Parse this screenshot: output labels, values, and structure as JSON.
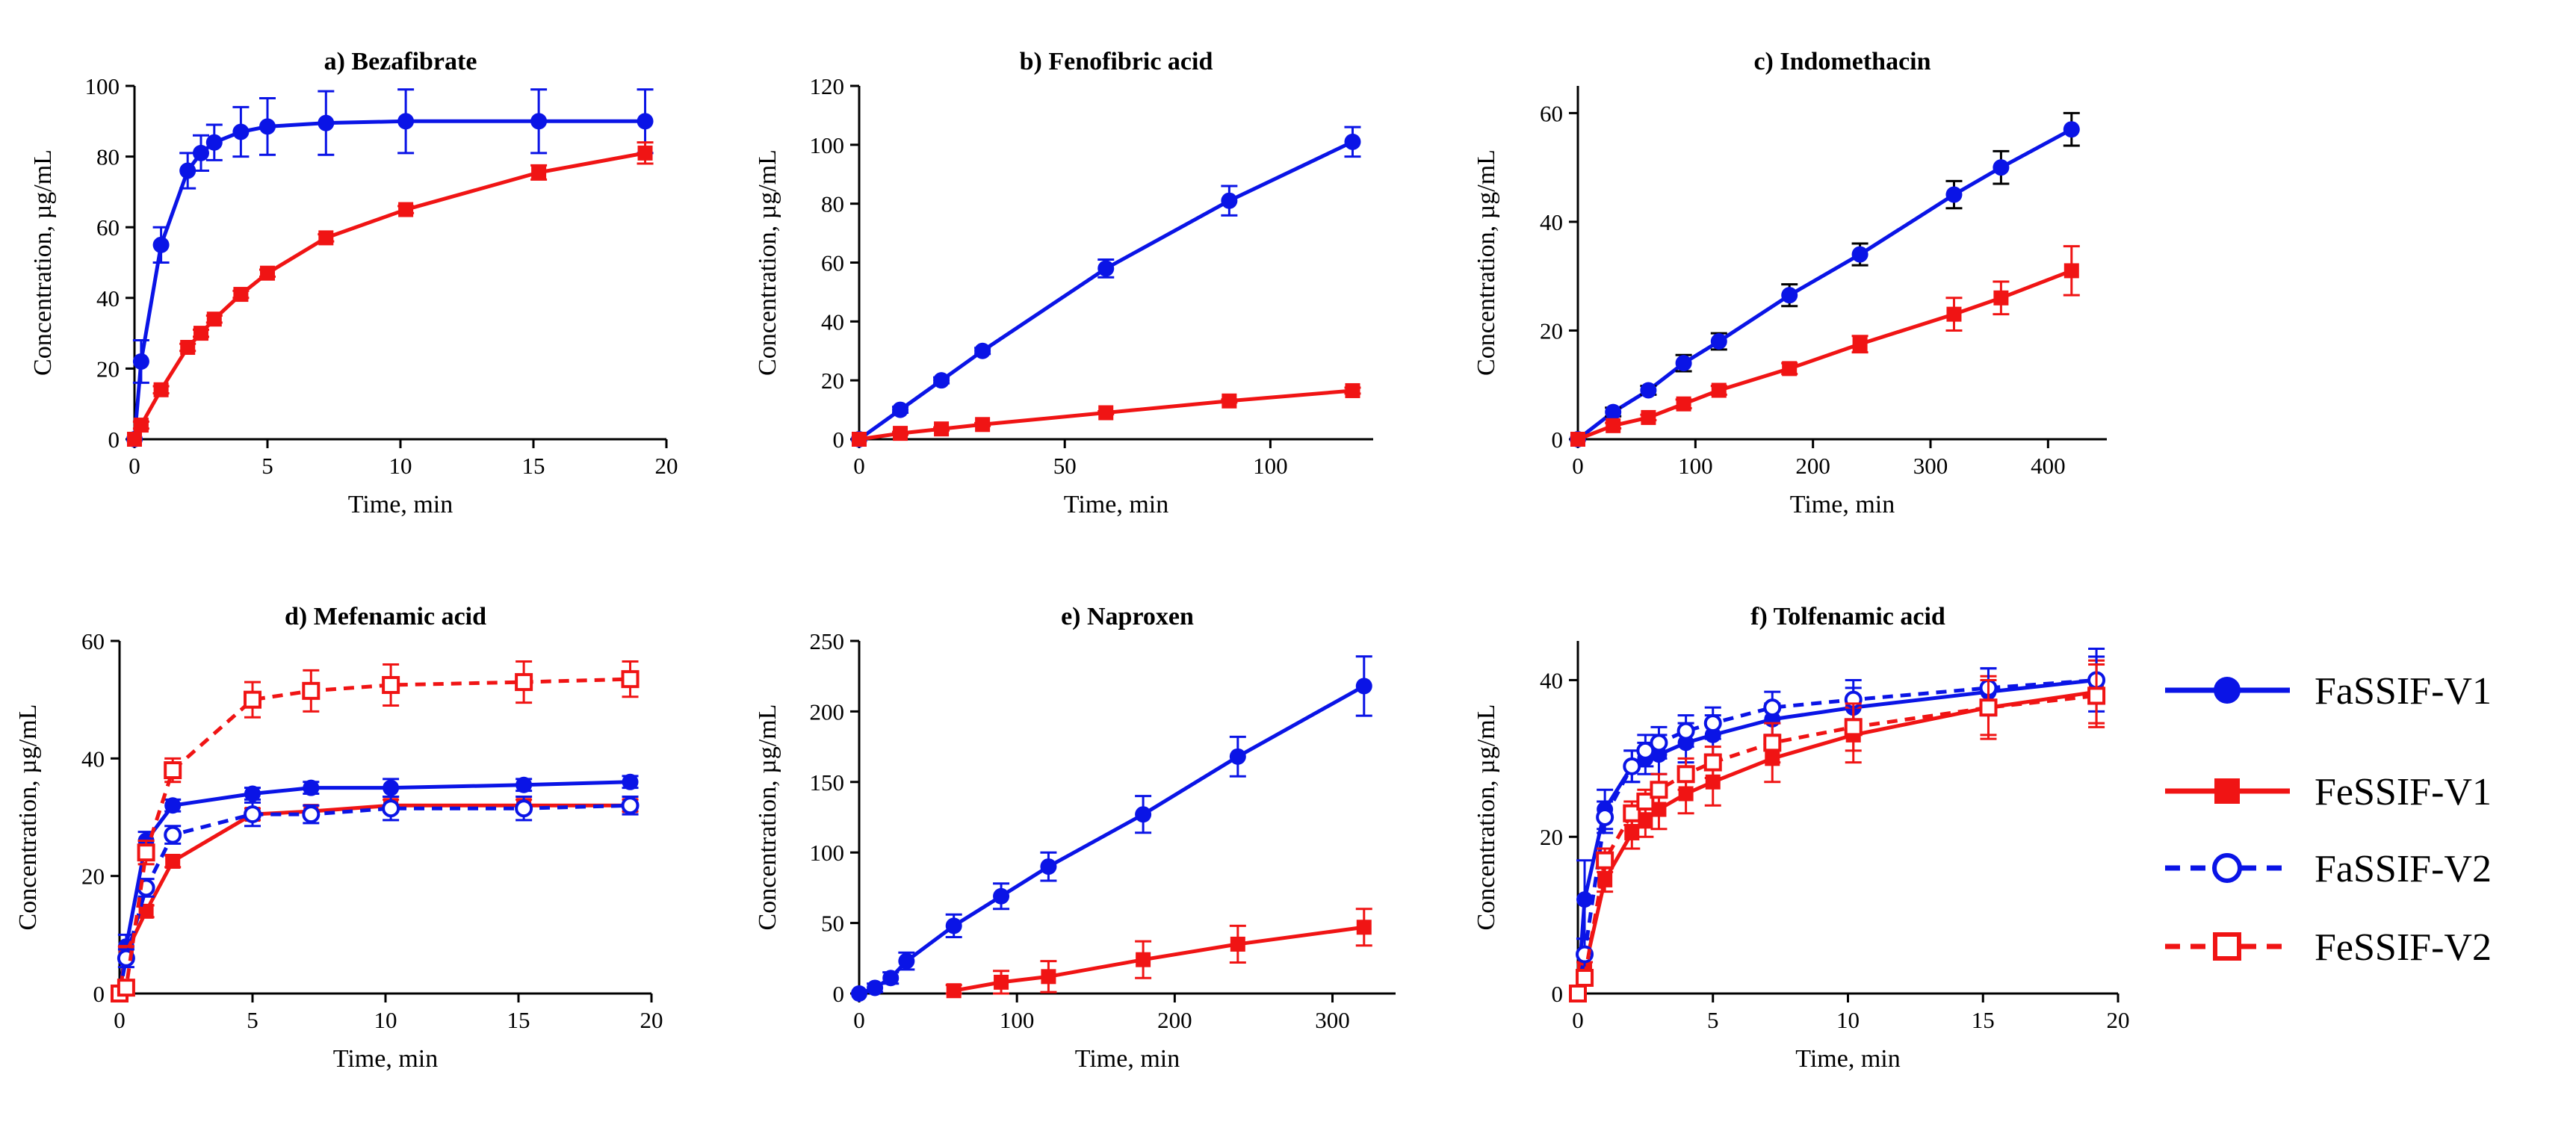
{
  "legend": {
    "items": [
      {
        "name": "FaSSIF-V1",
        "color": "#0A14E6",
        "marker": "circle-filled",
        "dashed": false
      },
      {
        "name": "FeSSIF-V1",
        "color": "#F01414",
        "marker": "square-filled",
        "dashed": false
      },
      {
        "name": "FaSSIF-V2",
        "color": "#0A14E6",
        "marker": "circle-open",
        "dashed": true
      },
      {
        "name": "FeSSIF-V2",
        "color": "#F01414",
        "marker": "square-open",
        "dashed": true
      }
    ]
  },
  "chart_data": [
    {
      "type": "line",
      "title": "a) Bezafibrate",
      "xlabel": "Time, min",
      "ylabel": "Concentration, µg/mL",
      "xlim": [
        0,
        20
      ],
      "ylim": [
        0,
        100
      ],
      "xticks": [
        0,
        5,
        10,
        15,
        20
      ],
      "yticks": [
        0,
        20,
        40,
        60,
        80,
        100
      ],
      "series": [
        {
          "name": "FaSSIF-V1",
          "x": [
            0,
            0.25,
            1,
            2,
            2.5,
            3,
            4,
            5,
            7.2,
            10.2,
            15.2,
            19.2
          ],
          "y": [
            0,
            22,
            55,
            76,
            81,
            84,
            87,
            88.5,
            89.5,
            90,
            90,
            90
          ],
          "err": [
            0,
            6,
            5,
            5,
            5,
            5,
            7,
            8,
            9,
            9,
            9,
            9
          ]
        },
        {
          "name": "FeSSIF-V1",
          "x": [
            0,
            0.25,
            1,
            2,
            2.5,
            3,
            4,
            5,
            7.2,
            10.2,
            15.2,
            19.2
          ],
          "y": [
            0,
            4,
            14,
            26,
            30,
            34,
            41,
            47,
            57,
            65,
            75.5,
            81
          ],
          "err": [
            0,
            1,
            1,
            1,
            1,
            1,
            1,
            1,
            1,
            1,
            2,
            3
          ]
        }
      ]
    },
    {
      "type": "line",
      "title": "b) Fenofibric acid",
      "xlabel": "Time, min",
      "ylabel": "Concentration, µg/mL",
      "xlim": [
        0,
        125
      ],
      "ylim": [
        0,
        120
      ],
      "xticks": [
        0,
        50,
        100
      ],
      "yticks": [
        0,
        20,
        40,
        60,
        80,
        100,
        120
      ],
      "series": [
        {
          "name": "FaSSIF-V1",
          "x": [
            0,
            10,
            20,
            30,
            60,
            90,
            120
          ],
          "y": [
            0,
            10,
            20,
            30,
            58,
            81,
            101
          ],
          "err": [
            0,
            1,
            1,
            1,
            3,
            5,
            5
          ]
        },
        {
          "name": "FeSSIF-V1",
          "x": [
            0,
            10,
            20,
            30,
            60,
            90,
            120
          ],
          "y": [
            0,
            2,
            3.5,
            5,
            9,
            13,
            16.5
          ],
          "err": [
            0,
            0.5,
            0.5,
            0.5,
            0.5,
            0.5,
            1
          ]
        }
      ]
    },
    {
      "type": "line",
      "title": "c) Indomethacin",
      "xlabel": "Time, min",
      "ylabel": "Concentration, µg/mL",
      "xlim": [
        0,
        450
      ],
      "ylim": [
        0,
        65
      ],
      "xticks": [
        0,
        100,
        200,
        300,
        400
      ],
      "yticks": [
        0,
        20,
        40,
        60
      ],
      "series": [
        {
          "name": "FaSSIF-V1",
          "x": [
            0,
            30,
            60,
            90,
            120,
            180,
            240,
            320,
            360,
            420
          ],
          "y": [
            0,
            5,
            9,
            14,
            18,
            26.5,
            34,
            45,
            50,
            57
          ],
          "err": [
            0,
            0.8,
            0.8,
            1.5,
            1.5,
            2,
            2,
            2.5,
            3,
            3
          ],
          "errColor": "#000000"
        },
        {
          "name": "FeSSIF-V1",
          "x": [
            0,
            30,
            60,
            90,
            120,
            180,
            240,
            320,
            360,
            420
          ],
          "y": [
            0,
            2.5,
            4,
            6.5,
            9,
            13,
            17.5,
            23,
            26,
            31
          ],
          "err": [
            0,
            0.5,
            0.5,
            0.8,
            0.8,
            1,
            1.5,
            3,
            3,
            4.5
          ]
        }
      ]
    },
    {
      "type": "line",
      "title": "d) Mefenamic acid",
      "xlabel": "Time, min",
      "ylabel": "Concentration, µg/mL",
      "xlim": [
        0,
        20
      ],
      "ylim": [
        0,
        60
      ],
      "xticks": [
        0,
        5,
        10,
        15,
        20
      ],
      "yticks": [
        0,
        20,
        40,
        60
      ],
      "series": [
        {
          "name": "FaSSIF-V1",
          "x": [
            0,
            0.25,
            1,
            2,
            5,
            7.2,
            10.2,
            15.2,
            19.2
          ],
          "y": [
            0,
            8,
            26,
            32,
            34,
            35,
            35,
            35.5,
            36
          ],
          "err": [
            0,
            2,
            1.5,
            1,
            1,
            1,
            1.5,
            1,
            1
          ]
        },
        {
          "name": "FeSSIF-V1",
          "x": [
            0,
            0.25,
            1,
            2,
            5,
            7.2,
            10.2,
            15.2,
            19.2
          ],
          "y": [
            0,
            7,
            14,
            22.5,
            30.5,
            31,
            32,
            32,
            32
          ],
          "err": [
            0,
            1,
            1,
            1,
            1,
            1,
            1,
            1,
            1
          ]
        },
        {
          "name": "FaSSIF-V2",
          "x": [
            0,
            0.25,
            1,
            2,
            5,
            7.2,
            10.2,
            15.2,
            19.2
          ],
          "y": [
            0,
            6,
            18,
            27,
            30.5,
            30.5,
            31.5,
            31.5,
            32
          ],
          "err": [
            0,
            1.5,
            1.5,
            1.5,
            2,
            1.5,
            2,
            2,
            1.5
          ]
        },
        {
          "name": "FeSSIF-V2",
          "x": [
            0,
            0.25,
            1,
            2,
            5,
            7.2,
            10.2,
            15.2,
            19.2
          ],
          "y": [
            0,
            1,
            24,
            38,
            50,
            51.5,
            52.5,
            53,
            53.5
          ],
          "err": [
            0,
            1,
            2,
            2,
            3,
            3.5,
            3.5,
            3.5,
            3
          ]
        }
      ]
    },
    {
      "type": "line",
      "title": "e) Naproxen",
      "xlabel": "Time, min",
      "ylabel": "Concentration, µg/mL",
      "xlim": [
        0,
        340
      ],
      "ylim": [
        0,
        250
      ],
      "xticks": [
        0,
        100,
        200,
        300
      ],
      "yticks": [
        0,
        50,
        100,
        150,
        200,
        250
      ],
      "series": [
        {
          "name": "FaSSIF-V1",
          "x": [
            0,
            10,
            20,
            30,
            60,
            90,
            120,
            180,
            240,
            320
          ],
          "y": [
            0,
            4,
            11,
            23,
            48,
            69,
            90,
            127,
            168,
            218
          ],
          "err": [
            0,
            3,
            4,
            6,
            8,
            9,
            10,
            13,
            14,
            21
          ]
        },
        {
          "name": "FeSSIF-V1",
          "x": [
            60,
            90,
            120,
            180,
            240,
            320
          ],
          "y": [
            2,
            8,
            12,
            24,
            35,
            47
          ],
          "err": [
            4,
            8,
            11,
            13,
            13,
            13
          ]
        }
      ]
    },
    {
      "type": "line",
      "title": "f) Tolfenamic acid",
      "xlabel": "Time, min",
      "ylabel": "Concentration, µg/mL",
      "xlim": [
        0,
        20
      ],
      "ylim": [
        0,
        45
      ],
      "xticks": [
        0,
        5,
        10,
        15,
        20
      ],
      "yticks": [
        0,
        20,
        40
      ],
      "series": [
        {
          "name": "FaSSIF-V1",
          "x": [
            0,
            0.25,
            1,
            2,
            2.5,
            3,
            4,
            5,
            7.2,
            10.2,
            15.2,
            19.2
          ],
          "y": [
            0,
            12,
            23.5,
            29,
            30,
            30.5,
            32,
            33,
            35,
            36.5,
            38.5,
            40
          ],
          "err": [
            0,
            5,
            2.5,
            2,
            2,
            2.5,
            2.5,
            2.5,
            2,
            2.5,
            3,
            4
          ]
        },
        {
          "name": "FeSSIF-V1",
          "x": [
            0,
            0.25,
            1,
            2,
            2.5,
            3,
            4,
            5,
            7.2,
            10.2,
            15.2,
            19.2
          ],
          "y": [
            0,
            3,
            14.5,
            20.5,
            22,
            23.5,
            25.5,
            27,
            30,
            33,
            36.5,
            38.5
          ],
          "err": [
            0,
            1,
            1.5,
            2,
            2,
            2.5,
            2.5,
            3,
            3,
            3.5,
            4,
            4
          ]
        },
        {
          "name": "FaSSIF-V2",
          "x": [
            0,
            0.25,
            1,
            2,
            2.5,
            3,
            4,
            5,
            7.2,
            10.2,
            15.2,
            19.2
          ],
          "y": [
            0,
            5,
            22.5,
            29,
            31,
            32,
            33.5,
            34.5,
            36.5,
            37.5,
            39,
            40
          ],
          "err": [
            0,
            2,
            2,
            2,
            2,
            2,
            2,
            2,
            2,
            2.5,
            2.5,
            3
          ]
        },
        {
          "name": "FeSSIF-V2",
          "x": [
            0,
            0.25,
            1,
            2,
            2.5,
            3,
            4,
            5,
            7.2,
            10.2,
            15.2,
            19.2
          ],
          "y": [
            0,
            2,
            17,
            23,
            24.5,
            26,
            28,
            29.5,
            32,
            34,
            36.5,
            38
          ],
          "err": [
            0,
            1,
            1.5,
            1.5,
            1.5,
            2,
            2,
            2,
            2.5,
            3,
            3.5,
            4
          ]
        }
      ]
    }
  ]
}
